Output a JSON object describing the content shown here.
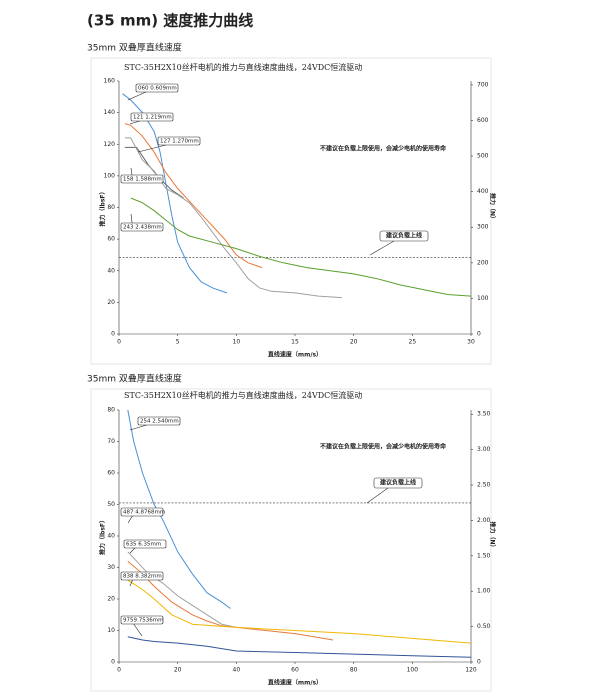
{
  "header": {
    "title": "(35 mm) 速度推力曲线"
  },
  "chart_data": [
    {
      "type": "line",
      "subtitle": "35mm 双叠厚直线速度",
      "title": "STC-35H2X10丝杆电机的推力与直线速度曲线，24VDC恒流驱动",
      "xlabel": "直线速度（mm/s）",
      "ylabel": "推力（lbsF）",
      "y2label": "推力（N）",
      "xlim": [
        0,
        30
      ],
      "xticks": [
        0,
        5,
        10,
        15,
        20,
        25,
        30
      ],
      "ylim": [
        0,
        160
      ],
      "yticks": [
        0,
        20,
        40,
        60,
        80,
        100,
        120,
        140,
        160
      ],
      "y2lim": [
        0,
        711
      ],
      "y2ticks": [
        0,
        100,
        200,
        300,
        400,
        500,
        600,
        700
      ],
      "annotations": [
        "不建议在负载上限使用，会减少电机的使用寿命",
        "建议负载上线"
      ],
      "threshold": 48.5,
      "series": [
        {
          "name": "060 0.609mm",
          "color": "#4a90d9",
          "x": [
            0.3,
            1,
            2,
            3,
            3.5,
            4,
            4.5,
            5,
            6,
            7,
            8,
            9.2
          ],
          "values": [
            152,
            148,
            140,
            128,
            115,
            95,
            75,
            58,
            42,
            33,
            29,
            26
          ]
        },
        {
          "name": "121 1.219mm",
          "color": "#e8793a",
          "x": [
            0.5,
            1,
            2,
            3,
            4,
            5,
            6,
            7,
            8,
            9,
            10,
            11,
            12.2
          ],
          "values": [
            133,
            132,
            125,
            115,
            102,
            92,
            84,
            76,
            68,
            60,
            50,
            45,
            42
          ]
        },
        {
          "name": "127 1.270mm",
          "color": "#666666",
          "x": [
            0.5,
            1.5,
            2.5,
            3.5,
            4.5,
            5.5
          ],
          "values": [
            118,
            118,
            107,
            98,
            91,
            86
          ]
        },
        {
          "name": "158 1.588mm",
          "color": "#a0a0a0",
          "x": [
            0.5,
            1,
            2,
            3,
            4,
            5,
            6,
            7,
            8,
            9,
            10,
            11,
            12,
            13,
            15,
            17,
            19
          ],
          "values": [
            124,
            124,
            110,
            103,
            92,
            88,
            83,
            74,
            64,
            54,
            45,
            35,
            29,
            27,
            26,
            24,
            23
          ]
        },
        {
          "name": "243 2.438mm",
          "color": "#5aa02c",
          "x": [
            1,
            2,
            3,
            4,
            5,
            6,
            8,
            10,
            12,
            14,
            16,
            18,
            20,
            22,
            24,
            26,
            28,
            30
          ],
          "values": [
            86,
            83,
            78,
            72,
            66,
            62,
            58,
            54,
            49,
            45,
            42,
            40,
            38,
            35,
            31,
            28,
            25,
            24
          ]
        }
      ]
    },
    {
      "type": "line",
      "subtitle": "35mm 双叠厚直线速度",
      "title": "STC-35H2X10丝杆电机的推力与直线速度曲线，24VDC恒流驱动",
      "xlabel": "直线速度（mm/s）",
      "ylabel": "推力（lbsF）",
      "y2label": "推力（N）",
      "xlim": [
        0,
        120
      ],
      "xticks": [
        0,
        20,
        40,
        60,
        80,
        100,
        120
      ],
      "ylim": [
        0,
        80
      ],
      "yticks": [
        0,
        10,
        20,
        30,
        40,
        50,
        60,
        70,
        80
      ],
      "y2lim": [
        0,
        3.56
      ],
      "y2ticks": [
        0,
        {
          "value": 0.5,
          "label": "0.50"
        },
        {
          "value": 1,
          "label": "1.00"
        },
        {
          "value": 1.5,
          "label": "1.50"
        },
        {
          "value": 2,
          "label": "2.00"
        },
        {
          "value": 2.5,
          "label": "2.50"
        },
        {
          "value": 3,
          "label": "3.00"
        },
        {
          "value": 3.5,
          "label": "3.50"
        }
      ],
      "annotations": [
        "不建议在负载上限使用，会减少电机的使用寿命",
        "建议负载上线"
      ],
      "threshold": 50.5,
      "series": [
        {
          "name": "254 2.540mm",
          "color": "#4a90d9",
          "x": [
            3,
            5,
            8,
            10,
            12,
            15,
            18,
            20,
            25,
            30,
            35,
            38
          ],
          "values": [
            80,
            70,
            60,
            55,
            50,
            45,
            39,
            35,
            28,
            22,
            19,
            17
          ]
        },
        {
          "name": "487 4.8768mm",
          "color": "#a0a0a0",
          "x": [
            3,
            6,
            10,
            15,
            20,
            25,
            30,
            35,
            40
          ],
          "values": [
            35,
            32,
            28,
            25,
            21,
            18,
            15,
            12,
            11
          ]
        },
        {
          "name": "635 6.35mm",
          "color": "#e8793a",
          "x": [
            3,
            8,
            12,
            18,
            25,
            30,
            35,
            40,
            50,
            60,
            73
          ],
          "values": [
            32,
            28,
            24,
            19,
            15,
            13,
            11.5,
            11,
            10,
            9,
            7
          ]
        },
        {
          "name": "838 8.382mm",
          "color": "#f2b705",
          "x": [
            3,
            8,
            12,
            18,
            25,
            40,
            60,
            80,
            100,
            120
          ],
          "values": [
            26,
            23,
            20,
            15,
            12,
            11,
            10,
            9,
            7.5,
            6
          ]
        },
        {
          "name": "9759.7536mm",
          "color": "#2f5597",
          "x": [
            3,
            8,
            12,
            20,
            30,
            40,
            60,
            80,
            100,
            120
          ],
          "values": [
            8,
            7,
            6.5,
            6,
            5,
            3.5,
            3,
            2.5,
            2,
            1.5
          ]
        }
      ]
    }
  ]
}
